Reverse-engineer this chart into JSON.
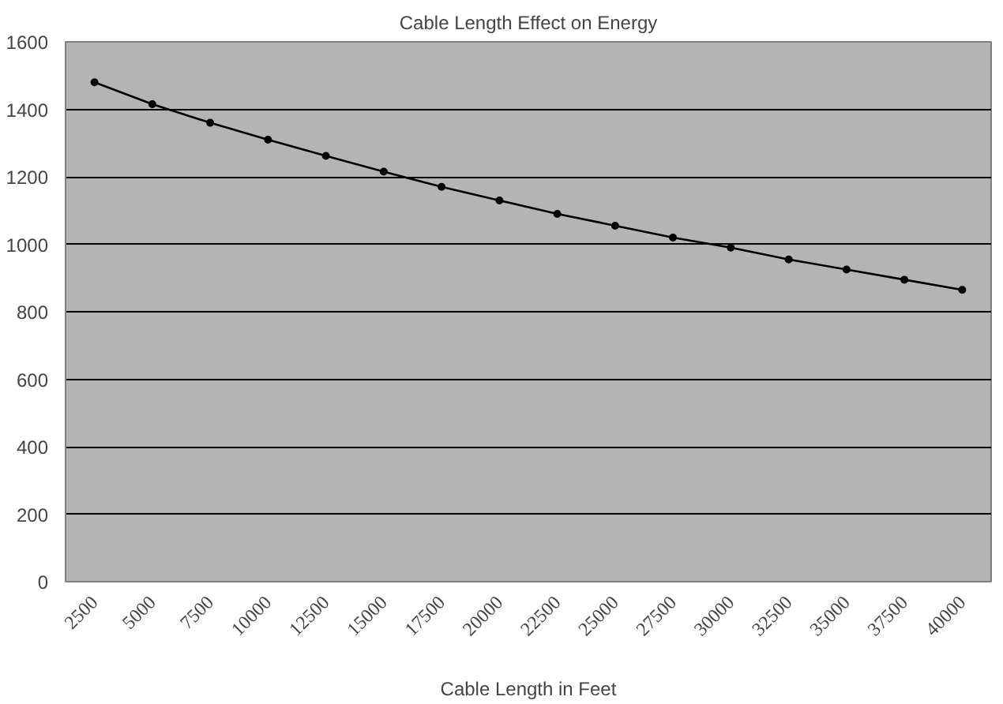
{
  "chart_data": {
    "type": "line",
    "title": "Cable Length Effect on Energy",
    "xlabel": "Cable Length in Feet",
    "categories": [
      "2500",
      "5000",
      "7500",
      "10000",
      "12500",
      "15000",
      "17500",
      "20000",
      "22500",
      "25000",
      "27500",
      "30000",
      "32500",
      "35000",
      "37500",
      "40000"
    ],
    "series": [
      {
        "color": "#000000",
        "values": [
          1480,
          1415,
          1360,
          1310,
          1262,
          1215,
          1170,
          1130,
          1090,
          1055,
          1020,
          990,
          955,
          925,
          895,
          865
        ]
      }
    ],
    "ylim": [
      0,
      1600
    ],
    "yticks": [
      0,
      200,
      400,
      600,
      800,
      1000,
      1200,
      1400,
      1600
    ],
    "grid": "y",
    "marker": "circle",
    "line_style": "solid"
  }
}
